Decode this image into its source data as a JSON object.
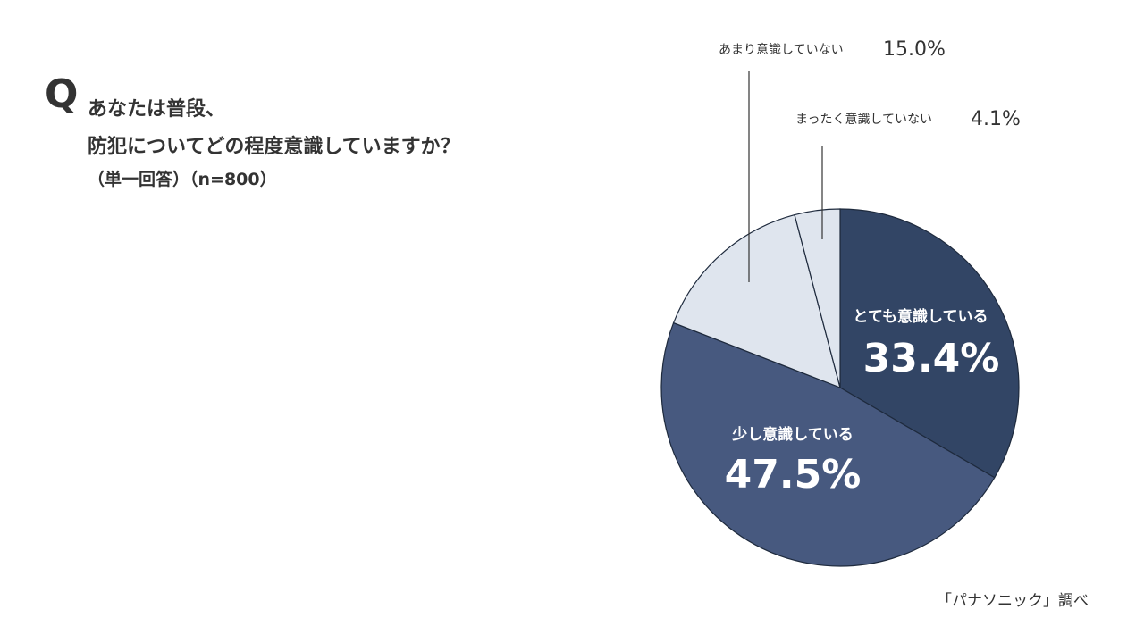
{
  "question": {
    "letter": "Q",
    "line1": "あなたは普段、",
    "line2": "防犯についてどの程度意識していますか？",
    "note": "（単一回答）（n=800）"
  },
  "source": "「パナソニック」調べ",
  "chart_data": {
    "type": "pie",
    "title": "",
    "slices": [
      {
        "label": "とても意識している",
        "value": 33.4,
        "display": "33.4%",
        "color": "#324565"
      },
      {
        "label": "少し意識している",
        "value": 47.5,
        "display": "47.5%",
        "color": "#47597f"
      },
      {
        "label": "あまり意識していない",
        "value": 15.0,
        "display": "15.0%",
        "color": "#dfe5ee"
      },
      {
        "label": "まったく意識していない",
        "value": 4.1,
        "display": "4.1%",
        "color": "#dfe5ee"
      }
    ],
    "start": "12 o'clock",
    "direction": "clockwise",
    "legend": "none"
  }
}
